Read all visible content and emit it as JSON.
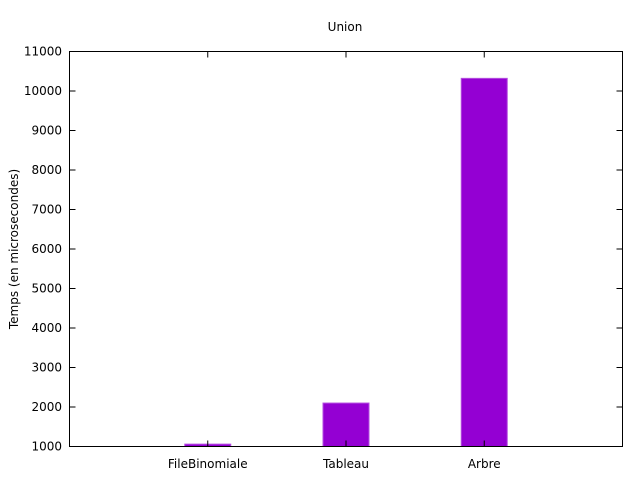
{
  "chart_data": {
    "type": "bar",
    "title": "Union",
    "xlabel": "",
    "ylabel": "Temps (en microsecondes)",
    "categories": [
      "FileBinomiale",
      "Tableau",
      "Arbre"
    ],
    "values": [
      1060,
      2100,
      10320
    ],
    "ylim": [
      1000,
      11000
    ],
    "yticks": [
      1000,
      2000,
      3000,
      4000,
      5000,
      6000,
      7000,
      8000,
      9000,
      10000,
      11000
    ],
    "grid": false,
    "legend": "none",
    "colors": {
      "bar_fill": "#9400d3",
      "bar_edge": "#b54fe0",
      "axis": "#000000"
    }
  }
}
